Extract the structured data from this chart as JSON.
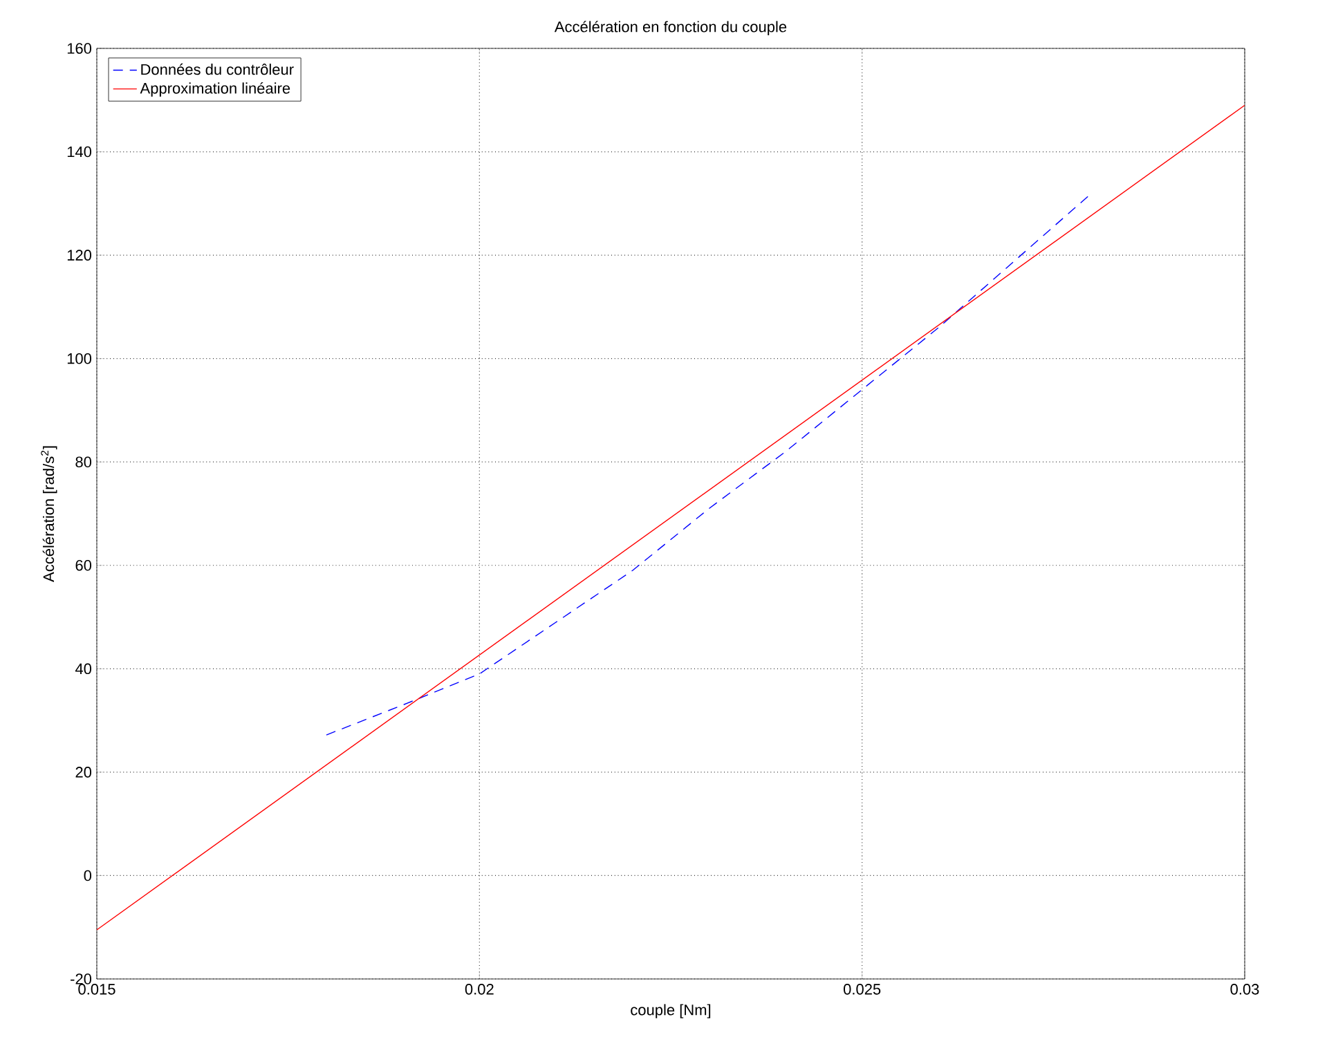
{
  "chart_data": {
    "type": "line",
    "title": "Accélération en fonction du couple",
    "xlabel": "couple [Nm]",
    "ylabel": "Accélération [rad/s$^{2}$]",
    "xlim": [
      0.015,
      0.03
    ],
    "xticks": [
      0.015,
      0.02,
      0.025,
      0.03
    ],
    "ylim": [
      -20,
      160
    ],
    "yticks": [
      -20,
      0,
      20,
      40,
      60,
      80,
      100,
      120,
      140,
      160
    ],
    "grid": true,
    "legend": "top left",
    "series": [
      {
        "name": "Données du contrôleur",
        "color": "#0000ff",
        "line_style": "dashed",
        "x": [
          0.018,
          0.019,
          0.02,
          0.021,
          0.022,
          0.023,
          0.024,
          0.025,
          0.026,
          0.027,
          0.028
        ],
        "values": [
          27.2,
          33,
          39,
          49,
          59,
          71,
          82,
          94,
          106,
          119,
          132
        ]
      },
      {
        "name": "Approximation linéaire",
        "color": "#ff0000",
        "line_style": "solid",
        "x": [
          0.015,
          0.03
        ],
        "values": [
          -10.5,
          149
        ]
      }
    ]
  }
}
